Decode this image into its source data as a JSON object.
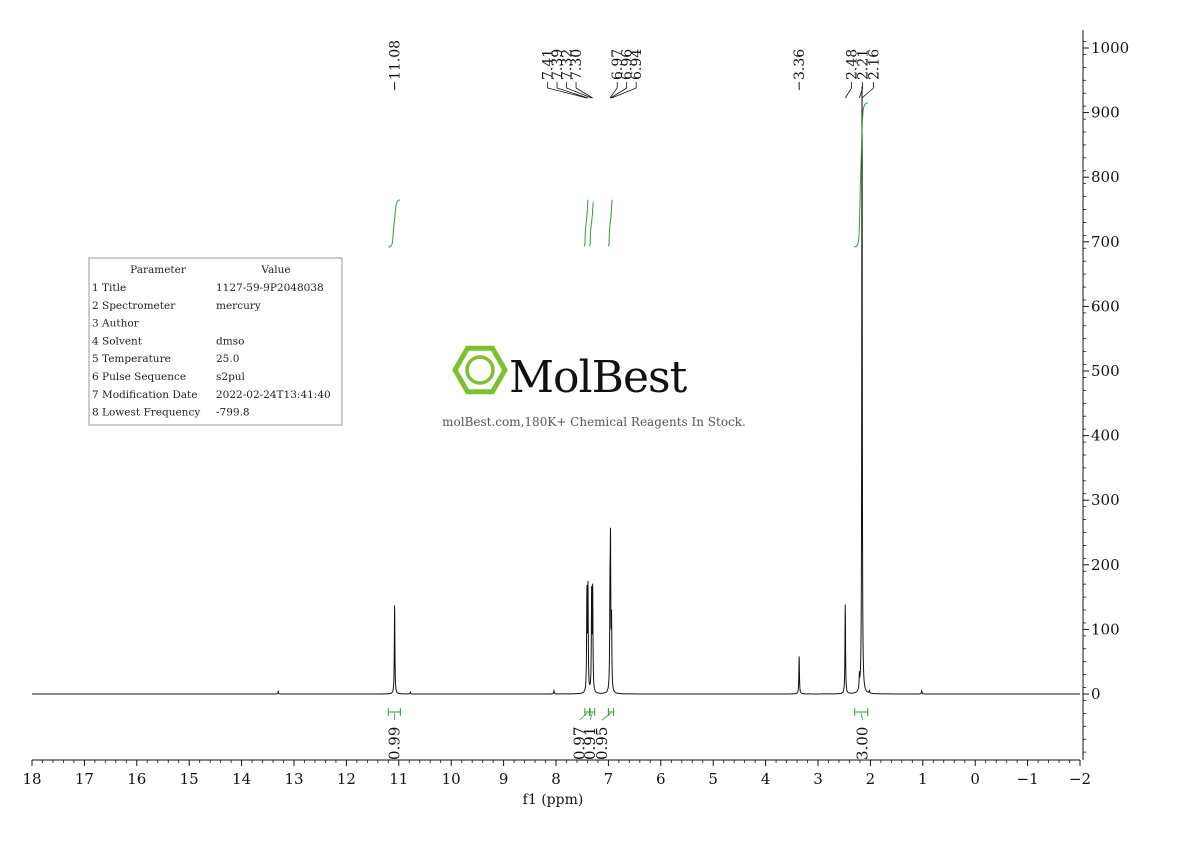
{
  "params_table": {
    "header": [
      "Parameter",
      "Value"
    ],
    "rows": [
      [
        "1 Title",
        "1127-59-9P2048038"
      ],
      [
        "2 Spectrometer",
        "mercury"
      ],
      [
        "3 Author",
        ""
      ],
      [
        "4 Solvent",
        "dmso"
      ],
      [
        "5 Temperature",
        "25.0"
      ],
      [
        "6 Pulse Sequence",
        "s2pul"
      ],
      [
        "7 Modification Date",
        "2022-02-24T13:41:40"
      ],
      [
        "8 Lowest Frequency",
        "-799.8"
      ]
    ]
  },
  "watermark": {
    "brand": "MolBest",
    "tagline": "molBest.com,180K+ Chemical Reagents In Stock.",
    "brand_color": "#7dc12f"
  },
  "chart_data": {
    "type": "line",
    "title": "",
    "xlabel": "f1 (ppm)",
    "ylabel": "",
    "xlim": [
      18,
      -2
    ],
    "x_reversed": true,
    "ylim": [
      -100,
      1020
    ],
    "x_ticks": [
      18,
      17,
      16,
      15,
      14,
      13,
      12,
      11,
      10,
      9,
      8,
      7,
      6,
      5,
      4,
      3,
      2,
      1,
      0,
      -1,
      -2
    ],
    "x_tick_labels": [
      "18",
      "17",
      "16",
      "15",
      "14",
      "13",
      "12",
      "11",
      "10",
      "9",
      "8",
      "7",
      "6",
      "5",
      "4",
      "3",
      "2",
      "1",
      "0",
      "−1",
      "−2"
    ],
    "y_ticks": [
      0,
      100,
      200,
      300,
      400,
      500,
      600,
      700,
      800,
      900,
      1000
    ],
    "y_tick_labels": [
      "0",
      "100",
      "200",
      "300",
      "400",
      "500",
      "600",
      "700",
      "800",
      "900",
      "1000"
    ],
    "peaks": [
      {
        "ppm": 13.3,
        "height": 4
      },
      {
        "ppm": 11.08,
        "height": 137
      },
      {
        "ppm": 10.78,
        "height": 3
      },
      {
        "ppm": 8.04,
        "height": 5
      },
      {
        "ppm": 7.41,
        "height": 152
      },
      {
        "ppm": 7.39,
        "height": 158
      },
      {
        "ppm": 7.32,
        "height": 150
      },
      {
        "ppm": 7.3,
        "height": 155
      },
      {
        "ppm": 6.97,
        "height": 125
      },
      {
        "ppm": 6.96,
        "height": 210
      },
      {
        "ppm": 6.94,
        "height": 105
      },
      {
        "ppm": 3.36,
        "height": 58
      },
      {
        "ppm": 2.48,
        "height": 138
      },
      {
        "ppm": 2.21,
        "height": 22
      },
      {
        "ppm": 2.16,
        "height": 940
      },
      {
        "ppm": 2.02,
        "height": 4
      },
      {
        "ppm": 1.02,
        "height": 5
      }
    ],
    "peak_labels": [
      {
        "text": "11.08",
        "ppm": 11.08
      },
      {
        "text": "7.41",
        "ppm": 7.41
      },
      {
        "text": "7.39",
        "ppm": 7.39
      },
      {
        "text": "7.32",
        "ppm": 7.32
      },
      {
        "text": "7.30",
        "ppm": 7.3
      },
      {
        "text": "6.97",
        "ppm": 6.97
      },
      {
        "text": "6.96",
        "ppm": 6.96
      },
      {
        "text": "6.94",
        "ppm": 6.94
      },
      {
        "text": "3.36",
        "ppm": 3.36
      },
      {
        "text": "2.48",
        "ppm": 2.48
      },
      {
        "text": "2.21",
        "ppm": 2.21
      },
      {
        "text": "2.16",
        "ppm": 2.16
      }
    ],
    "integrals": [
      {
        "label": "0.99",
        "from": 11.2,
        "to": 10.97
      },
      {
        "label": "0.97",
        "from": 7.45,
        "to": 7.36
      },
      {
        "label": "0.91",
        "from": 7.35,
        "to": 7.26
      },
      {
        "label": "0.95",
        "from": 7.0,
        "to": 6.9
      },
      {
        "label": "3.00",
        "from": 2.3,
        "to": 2.05
      }
    ],
    "integral_color": "#2e9e2e"
  }
}
